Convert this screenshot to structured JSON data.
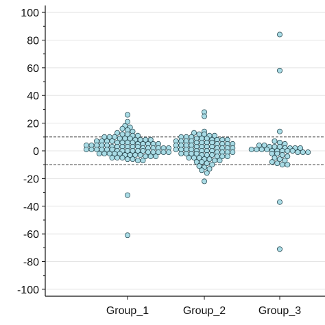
{
  "chart_data": {
    "type": "scatter",
    "subtype": "beeswarm",
    "title": "",
    "xlabel": "",
    "ylabel": "",
    "categories": [
      "Group_1",
      "Group_2",
      "Group_3"
    ],
    "ylim": [
      -105,
      105
    ],
    "yticks": [
      100,
      80,
      60,
      40,
      20,
      0,
      -20,
      -40,
      -60,
      -80,
      -100
    ],
    "grid": true,
    "reference_lines": [
      10,
      -10
    ],
    "marker_color": "#a9dce6",
    "marker_edge": "#2a4a52",
    "series": [
      {
        "category": "Group_1",
        "values": [
          -61,
          -32,
          26,
          21,
          18,
          17,
          16,
          15,
          14,
          13,
          12,
          12,
          11,
          11,
          10,
          10,
          10,
          9,
          9,
          9,
          8,
          8,
          8,
          8,
          7,
          7,
          7,
          7,
          6,
          6,
          6,
          6,
          5,
          5,
          5,
          5,
          5,
          4,
          4,
          4,
          4,
          4,
          3,
          3,
          3,
          3,
          3,
          3,
          2,
          2,
          2,
          2,
          2,
          2,
          1,
          1,
          1,
          1,
          1,
          1,
          0,
          0,
          0,
          0,
          0,
          0,
          -1,
          -1,
          -1,
          -1,
          -1,
          -2,
          -2,
          -2,
          -2,
          -2,
          -3,
          -3,
          -3,
          -3,
          -4,
          -4,
          -4,
          -5,
          -5,
          -5,
          -6,
          -6,
          -7,
          -7
        ]
      },
      {
        "category": "Group_2",
        "values": [
          28,
          25,
          14,
          13,
          12,
          12,
          11,
          11,
          10,
          10,
          10,
          9,
          9,
          9,
          8,
          8,
          8,
          8,
          7,
          7,
          7,
          7,
          6,
          6,
          6,
          6,
          5,
          5,
          5,
          5,
          4,
          4,
          4,
          4,
          3,
          3,
          3,
          3,
          2,
          2,
          2,
          2,
          1,
          1,
          1,
          1,
          0,
          0,
          0,
          0,
          -1,
          -1,
          -1,
          -1,
          -2,
          -2,
          -2,
          -2,
          -3,
          -3,
          -3,
          -4,
          -4,
          -4,
          -5,
          -5,
          -5,
          -6,
          -6,
          -7,
          -7,
          -8,
          -8,
          -9,
          -10,
          -11,
          -12,
          -13,
          -14,
          -16,
          -22
        ]
      },
      {
        "category": "Group_3",
        "values": [
          84,
          58,
          14,
          7,
          6,
          5,
          4,
          4,
          3,
          3,
          3,
          2,
          2,
          2,
          2,
          1,
          1,
          1,
          1,
          0,
          0,
          0,
          0,
          0,
          -1,
          -1,
          -1,
          -2,
          -2,
          -3,
          -4,
          -5,
          -6,
          -7,
          -8,
          -9,
          -10,
          -10,
          -37,
          -71
        ]
      }
    ]
  }
}
